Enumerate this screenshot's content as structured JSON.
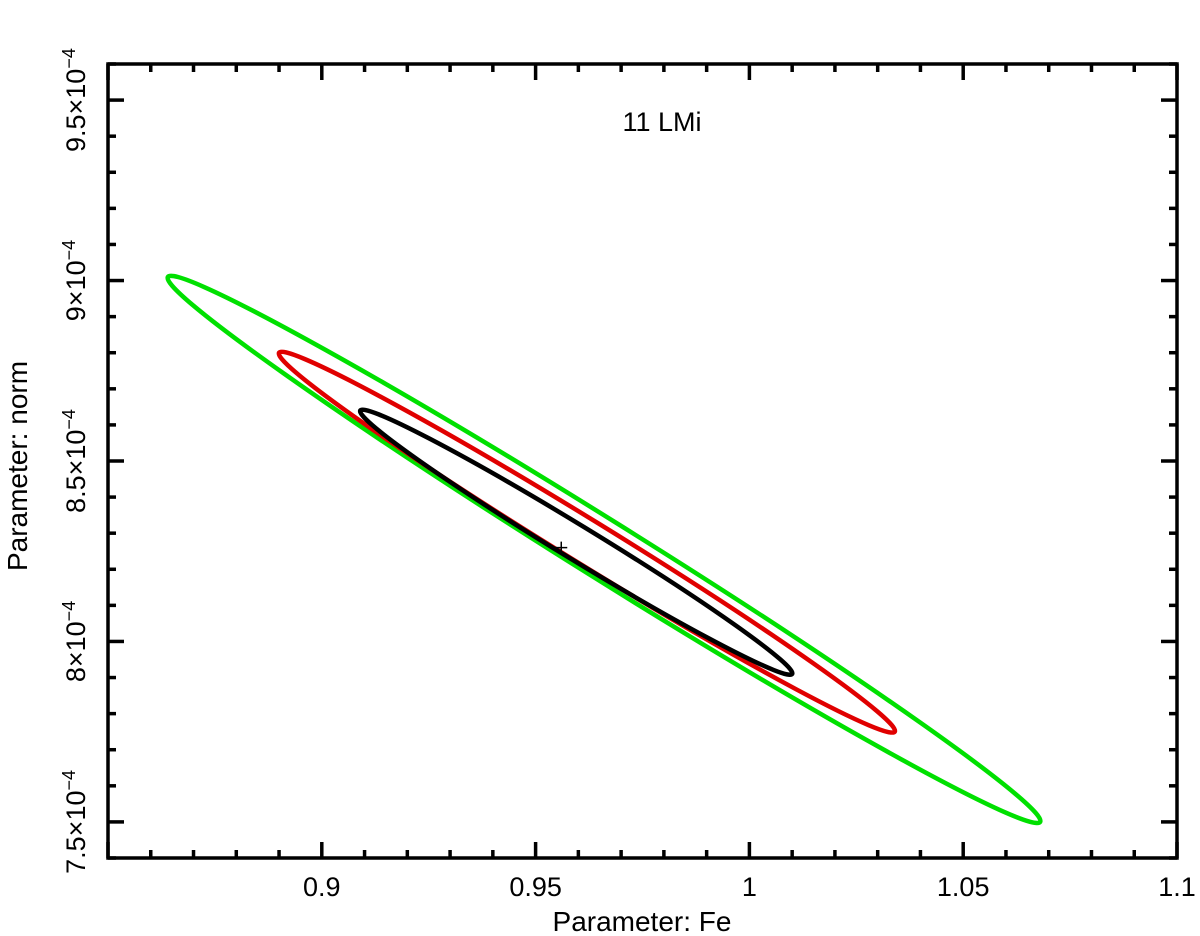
{
  "chart_data": {
    "type": "contour",
    "xlabel": "Parameter: Fe",
    "ylabel": "Parameter: norm",
    "annotation": "11 LMi",
    "xlim": [
      0.85,
      1.1
    ],
    "ylim": [
      0.00074,
      0.00096
    ],
    "x_ticks": [
      {
        "value": 0.9,
        "label": "0.9"
      },
      {
        "value": 0.95,
        "label": "0.95"
      },
      {
        "value": 1.0,
        "label": "1"
      },
      {
        "value": 1.05,
        "label": "1.05"
      },
      {
        "value": 1.1,
        "label": "1.1"
      }
    ],
    "y_ticks": [
      {
        "value": 0.00075,
        "mantissa": "7.5",
        "exp": "−4"
      },
      {
        "value": 0.0008,
        "mantissa": "8",
        "exp": "−4"
      },
      {
        "value": 0.00085,
        "mantissa": "8.5",
        "exp": "−4"
      },
      {
        "value": 0.0009,
        "mantissa": "9",
        "exp": "−4"
      },
      {
        "value": 0.00095,
        "mantissa": "9.5",
        "exp": "−4"
      }
    ],
    "best_fit": {
      "x": 0.956,
      "y": 0.000826
    },
    "series": [
      {
        "color": "#00e000",
        "x_range": [
          0.864,
          1.068
        ],
        "y_range": [
          0.00075,
          0.000901
        ],
        "tip_left": [
          0.864,
          0.000901
        ],
        "tip_right": [
          1.068,
          0.00075
        ]
      },
      {
        "color": "#e00000",
        "x_range": [
          0.89,
          1.034
        ],
        "y_range": [
          0.000775,
          0.00088
        ],
        "tip_left": [
          0.89,
          0.00088
        ],
        "tip_right": [
          1.034,
          0.000775
        ]
      },
      {
        "color": "#000000",
        "x_range": [
          0.909,
          1.01
        ],
        "y_range": [
          0.000791,
          0.000864
        ],
        "tip_left": [
          0.909,
          0.000864
        ],
        "tip_right": [
          1.01,
          0.000791
        ]
      }
    ]
  }
}
